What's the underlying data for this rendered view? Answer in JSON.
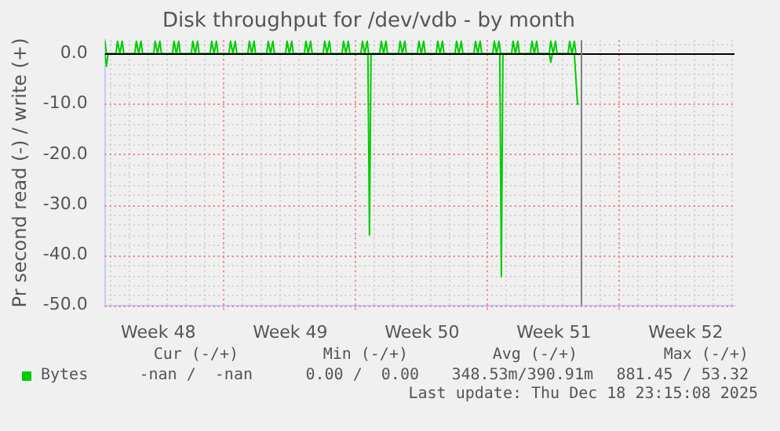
{
  "chart_data": {
    "type": "line",
    "title": "Disk throughput for /dev/vdb - by month",
    "ylabel": "Pr second read (-) / write (+)",
    "xlim": [
      "2025-11-23T17:00",
      "2025-12-27T03:00"
    ],
    "xticks": [
      {
        "value": "2025-11-26T13:00",
        "label": "Week 48"
      },
      {
        "value": "2025-11-30T00:00",
        "label": null
      },
      {
        "value": "2025-12-03T13:00",
        "label": "Week 49"
      },
      {
        "value": "2025-12-07T00:00",
        "label": null
      },
      {
        "value": "2025-12-10T13:00",
        "label": "Week 50"
      },
      {
        "value": "2025-12-14T00:00",
        "label": null
      },
      {
        "value": "2025-12-17T13:00",
        "label": "Week 51"
      },
      {
        "value": "2025-12-21T00:00",
        "label": null
      },
      {
        "value": "2025-12-24T13:00",
        "label": "Week 52"
      }
    ],
    "ylim": [
      -50,
      2.7
    ],
    "yticks": [
      {
        "value": -50,
        "label": "-50.0"
      },
      {
        "value": -40,
        "label": "-40.0"
      },
      {
        "value": -30,
        "label": "-30.0"
      },
      {
        "value": -20,
        "label": "-20.0"
      },
      {
        "value": -10,
        "label": "-10.0"
      },
      {
        "value": 0,
        "label": "0.0"
      }
    ],
    "grid": true,
    "legend": "bottom",
    "ref_lines": [
      {
        "axis": "y",
        "value": 0,
        "color": "#000000"
      },
      {
        "axis": "x",
        "value": "2025-12-18T23:15",
        "color": "#808080"
      }
    ],
    "annotations": [
      "Cur (-/+)",
      "Min (-/+)",
      "Avg (-/+)",
      "Max (-/+)",
      "-nan /  -nan",
      "0.00 /  0.00",
      "348.53m/390.91m",
      "881.45 / 53.32",
      "Last update: Thu Dec 18 23:15:08 2025"
    ],
    "series": [
      {
        "name": "Bytes",
        "color": "#00cc00",
        "x": [
          "2025-11-23T17:00",
          "2025-11-23T19:00",
          "2025-11-23T21:00",
          "2025-12-07T16:00",
          "2025-12-07T18:00",
          "2025-12-07T20:00",
          "2025-12-14T16:00",
          "2025-12-14T18:00",
          "2025-12-14T20:00",
          "2025-12-17T07:00",
          "2025-12-17T09:00",
          "2025-12-17T11:00",
          "2025-12-18T15:00",
          "2025-12-18T19:00",
          "2025-12-18T21:00"
        ],
        "values": [
          0,
          -2.5,
          0,
          0,
          -36,
          0,
          0,
          -44.3,
          0,
          0,
          -1.7,
          0,
          0,
          -10,
          -10
        ]
      },
      {
        "color": "#00cc00",
        "x": [
          "2025-11-23T17:00",
          "2025-11-23T19:00",
          "2025-11-24T07:00",
          "2025-11-24T09:00",
          "2025-11-24T12:00",
          "2025-11-24T15:00",
          "2025-11-24T17:00",
          "2025-11-25T07:00",
          "2025-11-25T09:00",
          "2025-11-25T12:00",
          "2025-11-25T15:00",
          "2025-11-25T17:00",
          "2025-11-26T07:00",
          "2025-11-26T09:00",
          "2025-11-26T12:00",
          "2025-11-26T15:00",
          "2025-11-26T17:00",
          "2025-11-27T07:00",
          "2025-11-27T09:00",
          "2025-11-27T12:00",
          "2025-11-27T15:00",
          "2025-11-27T17:00",
          "2025-11-28T07:00",
          "2025-11-28T09:00",
          "2025-11-28T12:00",
          "2025-11-28T15:00",
          "2025-11-28T17:00",
          "2025-11-29T07:00",
          "2025-11-29T09:00",
          "2025-11-29T12:00",
          "2025-11-29T15:00",
          "2025-11-29T17:00",
          "2025-11-30T07:00",
          "2025-11-30T09:00",
          "2025-11-30T12:00",
          "2025-11-30T15:00",
          "2025-11-30T17:00",
          "2025-12-01T07:00",
          "2025-12-01T09:00",
          "2025-12-01T12:00",
          "2025-12-01T15:00",
          "2025-12-01T17:00",
          "2025-12-02T07:00",
          "2025-12-02T09:00",
          "2025-12-02T12:00",
          "2025-12-02T15:00",
          "2025-12-02T17:00",
          "2025-12-03T07:00",
          "2025-12-03T09:00",
          "2025-12-03T12:00",
          "2025-12-03T15:00",
          "2025-12-03T17:00",
          "2025-12-04T07:00",
          "2025-12-04T09:00",
          "2025-12-04T12:00",
          "2025-12-04T15:00",
          "2025-12-04T17:00",
          "2025-12-05T07:00",
          "2025-12-05T09:00",
          "2025-12-05T12:00",
          "2025-12-05T15:00",
          "2025-12-05T17:00",
          "2025-12-06T07:00",
          "2025-12-06T09:00",
          "2025-12-06T12:00",
          "2025-12-06T15:00",
          "2025-12-06T17:00",
          "2025-12-07T07:00",
          "2025-12-07T09:00",
          "2025-12-07T12:00",
          "2025-12-07T15:00",
          "2025-12-07T17:00",
          "2025-12-08T07:00",
          "2025-12-08T09:00",
          "2025-12-08T12:00",
          "2025-12-08T15:00",
          "2025-12-08T17:00",
          "2025-12-09T07:00",
          "2025-12-09T09:00",
          "2025-12-09T12:00",
          "2025-12-09T15:00",
          "2025-12-09T17:00",
          "2025-12-10T07:00",
          "2025-12-10T09:00",
          "2025-12-10T12:00",
          "2025-12-10T15:00",
          "2025-12-10T17:00",
          "2025-12-11T07:00",
          "2025-12-11T09:00",
          "2025-12-11T12:00",
          "2025-12-11T15:00",
          "2025-12-11T17:00",
          "2025-12-12T07:00",
          "2025-12-12T09:00",
          "2025-12-12T12:00",
          "2025-12-12T15:00",
          "2025-12-12T17:00",
          "2025-12-13T07:00",
          "2025-12-13T09:00",
          "2025-12-13T12:00",
          "2025-12-13T15:00",
          "2025-12-13T17:00",
          "2025-12-14T07:00",
          "2025-12-14T09:00",
          "2025-12-14T12:00",
          "2025-12-14T15:00",
          "2025-12-14T17:00",
          "2025-12-15T07:00",
          "2025-12-15T09:00",
          "2025-12-15T12:00",
          "2025-12-15T15:00",
          "2025-12-15T17:00",
          "2025-12-16T07:00",
          "2025-12-16T09:00",
          "2025-12-16T12:00",
          "2025-12-16T15:00",
          "2025-12-16T17:00",
          "2025-12-17T07:00",
          "2025-12-17T09:00",
          "2025-12-17T12:00",
          "2025-12-17T15:00",
          "2025-12-17T17:00",
          "2025-12-18T07:00",
          "2025-12-18T09:00",
          "2025-12-18T12:00",
          "2025-12-18T15:00",
          "2025-12-18T17:00"
        ],
        "values": [
          2.5,
          0,
          0,
          2.5,
          0,
          2.5,
          0,
          0,
          2.5,
          0,
          2.5,
          0,
          0,
          2.5,
          0,
          2.5,
          0,
          0,
          2.5,
          0,
          2.5,
          0,
          0,
          2.5,
          0,
          2.5,
          0,
          0,
          2.5,
          0,
          2.5,
          0,
          0,
          2.5,
          0,
          2.5,
          0,
          0,
          2.5,
          0,
          2.5,
          0,
          0,
          2.5,
          0,
          2.5,
          0,
          0,
          2.5,
          0,
          2.5,
          0,
          0,
          2.5,
          0,
          2.5,
          0,
          0,
          2.5,
          0,
          2.5,
          0,
          0,
          2.5,
          0,
          2.5,
          0,
          0,
          2.5,
          0,
          2.5,
          0,
          0,
          2.5,
          0,
          2.5,
          0,
          0,
          2.5,
          0,
          2.5,
          0,
          0,
          2.5,
          0,
          2.5,
          0,
          0,
          2.5,
          0,
          2.5,
          0,
          0,
          2.5,
          0,
          2.5,
          0,
          0,
          2.5,
          0,
          2.5,
          0,
          0,
          2.5,
          0,
          2.5,
          0,
          0,
          2.5,
          0,
          2.5,
          0,
          0,
          2.5,
          0,
          2.5,
          0,
          0,
          2.5,
          0,
          2.5,
          0,
          0,
          2.5,
          0,
          2.5,
          0
        ]
      }
    ]
  }
}
